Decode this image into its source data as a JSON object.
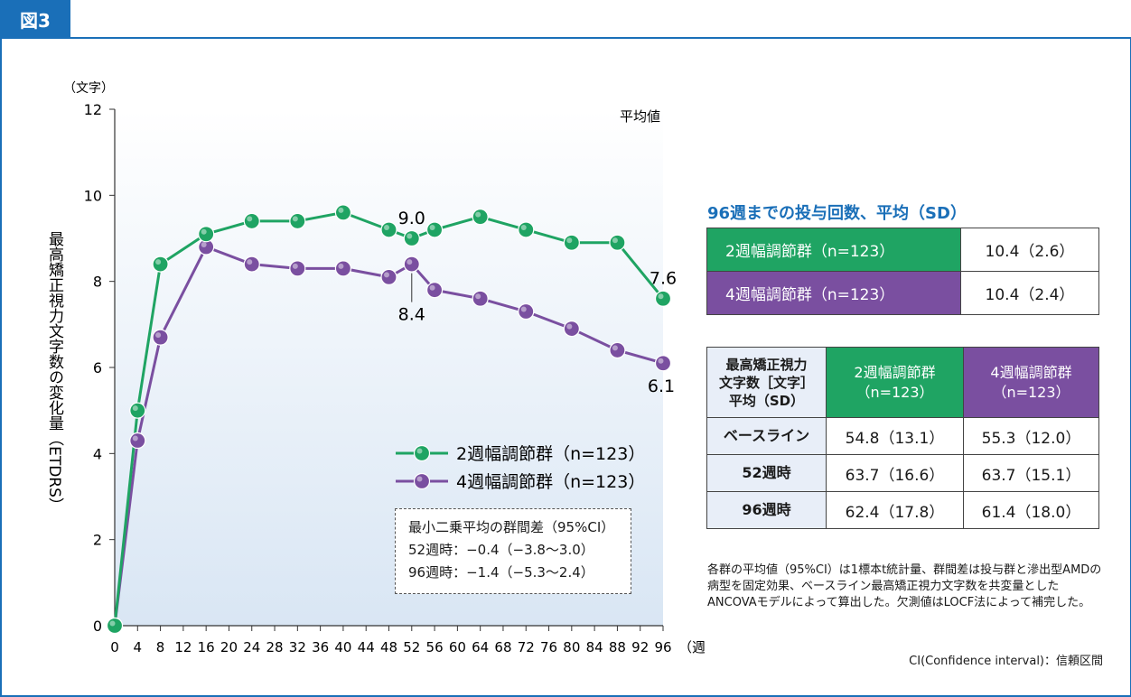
{
  "figure_label": "図3",
  "chart_data": {
    "type": "line",
    "y_unit": "（文字）",
    "x_unit": "（週）",
    "ylabel": "最高矯正視力文字数の変化量（ETDRS）",
    "corner_label": "平均値",
    "ylim": [
      0,
      12
    ],
    "xlim": [
      0,
      96
    ],
    "yticks": [
      0,
      2,
      4,
      6,
      8,
      10,
      12
    ],
    "xticks": [
      0,
      4,
      8,
      12,
      16,
      20,
      24,
      28,
      32,
      36,
      40,
      44,
      48,
      52,
      56,
      60,
      64,
      68,
      72,
      76,
      80,
      84,
      88,
      92,
      96
    ],
    "series": [
      {
        "name": "2週幅調節群（n=123）",
        "color": "#1fa463",
        "x": [
          0,
          4,
          8,
          16,
          24,
          32,
          40,
          48,
          52,
          56,
          64,
          72,
          80,
          88,
          96
        ],
        "y": [
          0,
          5.0,
          8.4,
          9.1,
          9.4,
          9.4,
          9.6,
          9.2,
          9.0,
          9.2,
          9.5,
          9.2,
          8.9,
          8.9,
          7.6
        ]
      },
      {
        "name": "4週幅調節群（n=123）",
        "color": "#7a4fa0",
        "x": [
          0,
          4,
          8,
          16,
          24,
          32,
          40,
          48,
          52,
          56,
          64,
          72,
          80,
          88,
          96
        ],
        "y": [
          0,
          4.3,
          6.7,
          8.8,
          8.4,
          8.3,
          8.3,
          8.1,
          8.4,
          7.8,
          7.6,
          7.3,
          6.9,
          6.4,
          6.1
        ]
      }
    ],
    "annotations": [
      {
        "text": "9.0",
        "series": 0,
        "x": 52
      },
      {
        "text": "8.4",
        "series": 1,
        "x": 52
      },
      {
        "text": "7.6",
        "series": 0,
        "x": 96
      },
      {
        "text": "6.1",
        "series": 1,
        "x": 96
      }
    ],
    "legend": [
      "2週幅調節群（n=123）",
      "4週幅調節群（n=123）"
    ],
    "stats_box": {
      "title": "最小二乗平均の群間差（95%CI）",
      "line1": "52週時：−0.4（−3.8〜3.0）",
      "line2": "96週時：−1.4（−5.3〜2.4）"
    }
  },
  "dosing": {
    "title": "96週までの投与回数、平均（SD）",
    "rows": [
      {
        "group": "2週幅調節群（n=123）",
        "value": "10.4（2.6）"
      },
      {
        "group": "4週幅調節群（n=123）",
        "value": "10.4（2.4）"
      }
    ]
  },
  "bcva_table": {
    "header": {
      "col0": "最高矯正視力\n文字数［文字］\n平均（SD）",
      "col1": "2週幅調節群\n（n=123）",
      "col2": "4週幅調節群\n（n=123）"
    },
    "rows": [
      {
        "label": "ベースライン",
        "a": "54.8（13.1）",
        "b": "55.3（12.0）"
      },
      {
        "label": "52週時",
        "a": "63.7（16.6）",
        "b": "63.7（15.1）"
      },
      {
        "label": "96週時",
        "a": "62.4（17.8）",
        "b": "61.4（18.0）"
      }
    ]
  },
  "footnote": "各群の平均値（95%CI）は1標本t統計量、群間差は投与群と滲出型AMDの病型を固定効果、ベースライン最高矯正視力文字数を共変量としたANCOVAモデルによって算出した。欠測値はLOCF法によって補完した。",
  "ci_note": "CI(Confidence interval)：信頼区間"
}
